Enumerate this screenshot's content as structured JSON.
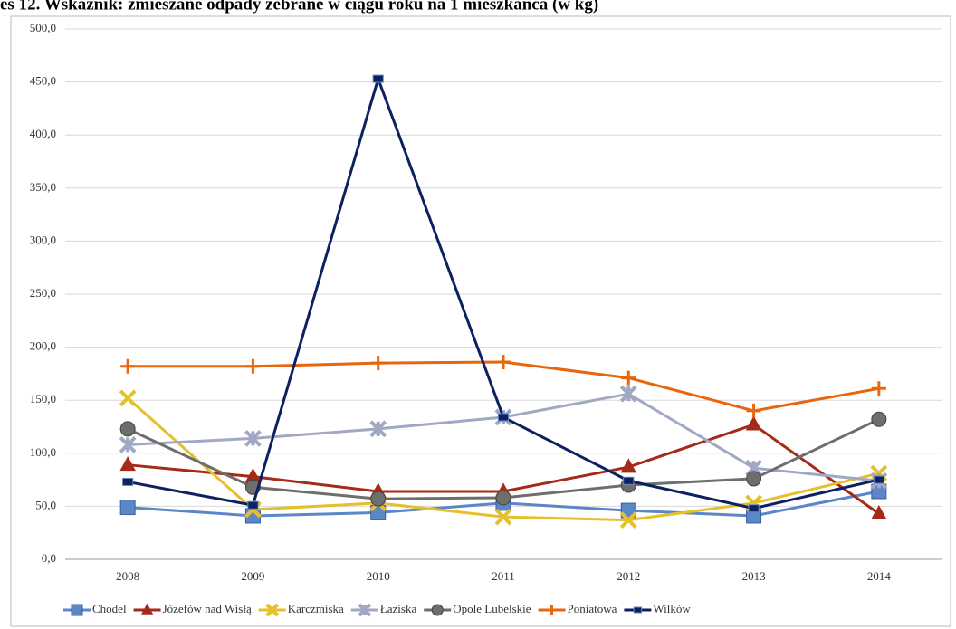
{
  "chart_data": {
    "type": "line",
    "title": "es 12. Wskaźnik: zmieszane odpady zebrane w ciągu roku na 1 mieszkańca (w kg)",
    "categories": [
      "2008",
      "2009",
      "2010",
      "2011",
      "2012",
      "2013",
      "2014"
    ],
    "ylim": [
      0,
      500
    ],
    "yticks": [
      {
        "value": 0,
        "label": "0,0"
      },
      {
        "value": 50,
        "label": "50,0"
      },
      {
        "value": 100,
        "label": "100,0"
      },
      {
        "value": 150,
        "label": "150,0"
      },
      {
        "value": 200,
        "label": "200,0"
      },
      {
        "value": 250,
        "label": "250,0"
      },
      {
        "value": 300,
        "label": "300,0"
      },
      {
        "value": 350,
        "label": "350,0"
      },
      {
        "value": 400,
        "label": "400,0"
      },
      {
        "value": 450,
        "label": "450,0"
      },
      {
        "value": 500,
        "label": "500,0"
      }
    ],
    "grid": true,
    "legend": "bottom",
    "series": [
      {
        "name": "Chodel",
        "color": "#5b86c8",
        "marker": "square",
        "values": [
          49,
          41,
          44,
          53,
          46,
          41,
          64
        ]
      },
      {
        "name": "Józefów nad Wisłą",
        "color": "#a52a1a",
        "marker": "triangle",
        "values": [
          89,
          78,
          64,
          64,
          87,
          127,
          43
        ]
      },
      {
        "name": "Karczmiska",
        "color": "#e6c02a",
        "marker": "x",
        "values": [
          152,
          47,
          53,
          40,
          37,
          53,
          81
        ]
      },
      {
        "name": "Łaziska",
        "color": "#a0a8c4",
        "marker": "star",
        "values": [
          108,
          114,
          123,
          134,
          156,
          86,
          74
        ]
      },
      {
        "name": "Opole Lubelskie",
        "color": "#6e6e6e",
        "marker": "circle",
        "values": [
          123,
          68,
          57,
          58,
          70,
          76,
          132
        ]
      },
      {
        "name": "Poniatowa",
        "color": "#e8660c",
        "marker": "plus",
        "values": [
          182,
          182,
          185,
          186,
          171,
          140,
          161
        ]
      },
      {
        "name": "Wilków",
        "color": "#0c2260",
        "marker": "smallsquare",
        "values": [
          73,
          51,
          453,
          134,
          74,
          48,
          75
        ]
      }
    ]
  }
}
